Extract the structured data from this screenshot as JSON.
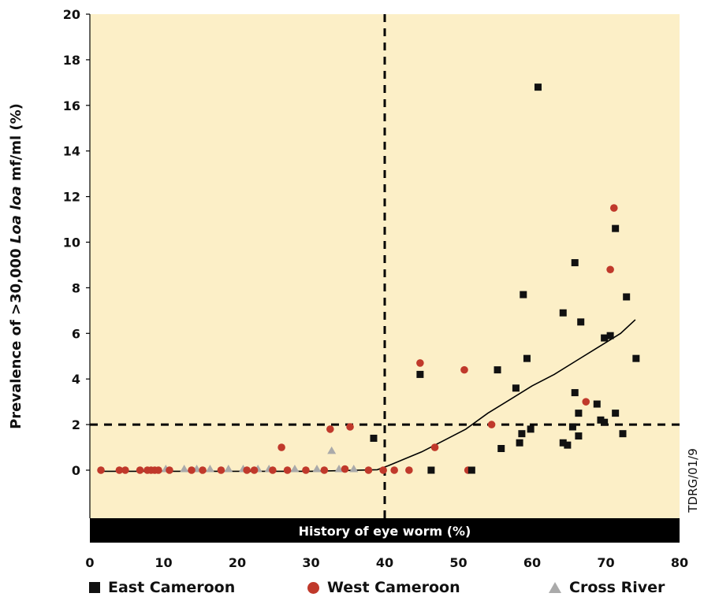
{
  "chart_data": {
    "type": "scatter",
    "ylabel_pre": "Prevalence of >30,000 ",
    "ylabel_italic": "Loa loa",
    "ylabel_post": " mf/ml (%)",
    "xlabel": "History of eye worm (%)",
    "side_code": "TDRG/01/9",
    "xlim": [
      0,
      80
    ],
    "ylim": [
      0,
      20
    ],
    "x_ticks": [
      "0",
      "10",
      "20",
      "30",
      "40",
      "50",
      "60",
      "70",
      "80"
    ],
    "y_ticks": [
      "0",
      "2",
      "4",
      "6",
      "8",
      "10",
      "12",
      "14",
      "16",
      "18",
      "20"
    ],
    "threshold_x": 40,
    "threshold_y": 2,
    "background": "#fcefc7",
    "series": [
      {
        "name": "East Cameroon",
        "marker": "square",
        "color": "#111111",
        "points": [
          [
            38.5,
            1.4
          ],
          [
            44.8,
            4.2
          ],
          [
            46.3,
            0.0
          ],
          [
            51.8,
            0.0
          ],
          [
            55.3,
            4.4
          ],
          [
            55.8,
            0.95
          ],
          [
            57.8,
            3.6
          ],
          [
            58.6,
            1.6
          ],
          [
            58.3,
            1.2
          ],
          [
            58.8,
            7.7
          ],
          [
            59.3,
            4.9
          ],
          [
            59.8,
            1.8
          ],
          [
            60.8,
            16.8
          ],
          [
            64.2,
            6.9
          ],
          [
            64.2,
            1.2
          ],
          [
            64.8,
            1.1
          ],
          [
            65.5,
            1.9
          ],
          [
            65.8,
            3.4
          ],
          [
            65.8,
            9.1
          ],
          [
            66.3,
            2.5
          ],
          [
            66.3,
            1.5
          ],
          [
            66.6,
            6.5
          ],
          [
            68.8,
            2.9
          ],
          [
            69.3,
            2.2
          ],
          [
            69.8,
            2.1
          ],
          [
            69.8,
            5.8
          ],
          [
            70.6,
            5.9
          ],
          [
            71.3,
            10.6
          ],
          [
            71.3,
            2.5
          ],
          [
            72.3,
            1.6
          ],
          [
            72.8,
            7.6
          ],
          [
            74.1,
            4.9
          ]
        ]
      },
      {
        "name": "West Cameroon",
        "marker": "circle",
        "color": "#c0392b",
        "points": [
          [
            1.5,
            0.0
          ],
          [
            4.0,
            0.0
          ],
          [
            4.8,
            0.0
          ],
          [
            6.8,
            0.0
          ],
          [
            7.8,
            0.0
          ],
          [
            8.3,
            0.0
          ],
          [
            8.8,
            0.0
          ],
          [
            9.3,
            0.0
          ],
          [
            10.8,
            0.0
          ],
          [
            13.8,
            0.0
          ],
          [
            15.3,
            0.0
          ],
          [
            17.8,
            0.0
          ],
          [
            21.3,
            0.0
          ],
          [
            22.3,
            0.0
          ],
          [
            24.8,
            0.0
          ],
          [
            26.0,
            1.0
          ],
          [
            26.8,
            0.0
          ],
          [
            29.3,
            0.0
          ],
          [
            31.8,
            0.0
          ],
          [
            32.6,
            1.8
          ],
          [
            34.6,
            0.05
          ],
          [
            35.3,
            1.9
          ],
          [
            37.8,
            0.0
          ],
          [
            39.8,
            0.0
          ],
          [
            41.3,
            0.0
          ],
          [
            43.3,
            0.0
          ],
          [
            44.8,
            4.7
          ],
          [
            46.8,
            1.0
          ],
          [
            50.8,
            4.4
          ],
          [
            51.3,
            0.0
          ],
          [
            54.5,
            2.0
          ],
          [
            67.3,
            3.0
          ],
          [
            70.6,
            8.8
          ],
          [
            71.1,
            11.5
          ]
        ]
      },
      {
        "name": "Cross River",
        "marker": "triangle",
        "color": "#aaaaaa",
        "points": [
          [
            10.3,
            0.05
          ],
          [
            12.8,
            0.05
          ],
          [
            14.5,
            0.05
          ],
          [
            16.3,
            0.05
          ],
          [
            18.8,
            0.05
          ],
          [
            20.8,
            0.05
          ],
          [
            22.8,
            0.05
          ],
          [
            24.3,
            0.05
          ],
          [
            27.8,
            0.05
          ],
          [
            30.8,
            0.05
          ],
          [
            32.8,
            0.85
          ],
          [
            33.8,
            0.05
          ],
          [
            35.8,
            0.05
          ]
        ]
      }
    ],
    "trend_line": [
      [
        1.5,
        -0.05
      ],
      [
        10,
        -0.05
      ],
      [
        20,
        -0.05
      ],
      [
        30,
        -0.05
      ],
      [
        39,
        0.02
      ],
      [
        40.5,
        0.2
      ],
      [
        45,
        0.8
      ],
      [
        48,
        1.3
      ],
      [
        51,
        1.8
      ],
      [
        54,
        2.5
      ],
      [
        57,
        3.1
      ],
      [
        60,
        3.7
      ],
      [
        63,
        4.2
      ],
      [
        66,
        4.8
      ],
      [
        69,
        5.4
      ],
      [
        72,
        6.0
      ],
      [
        74,
        6.6
      ]
    ]
  }
}
